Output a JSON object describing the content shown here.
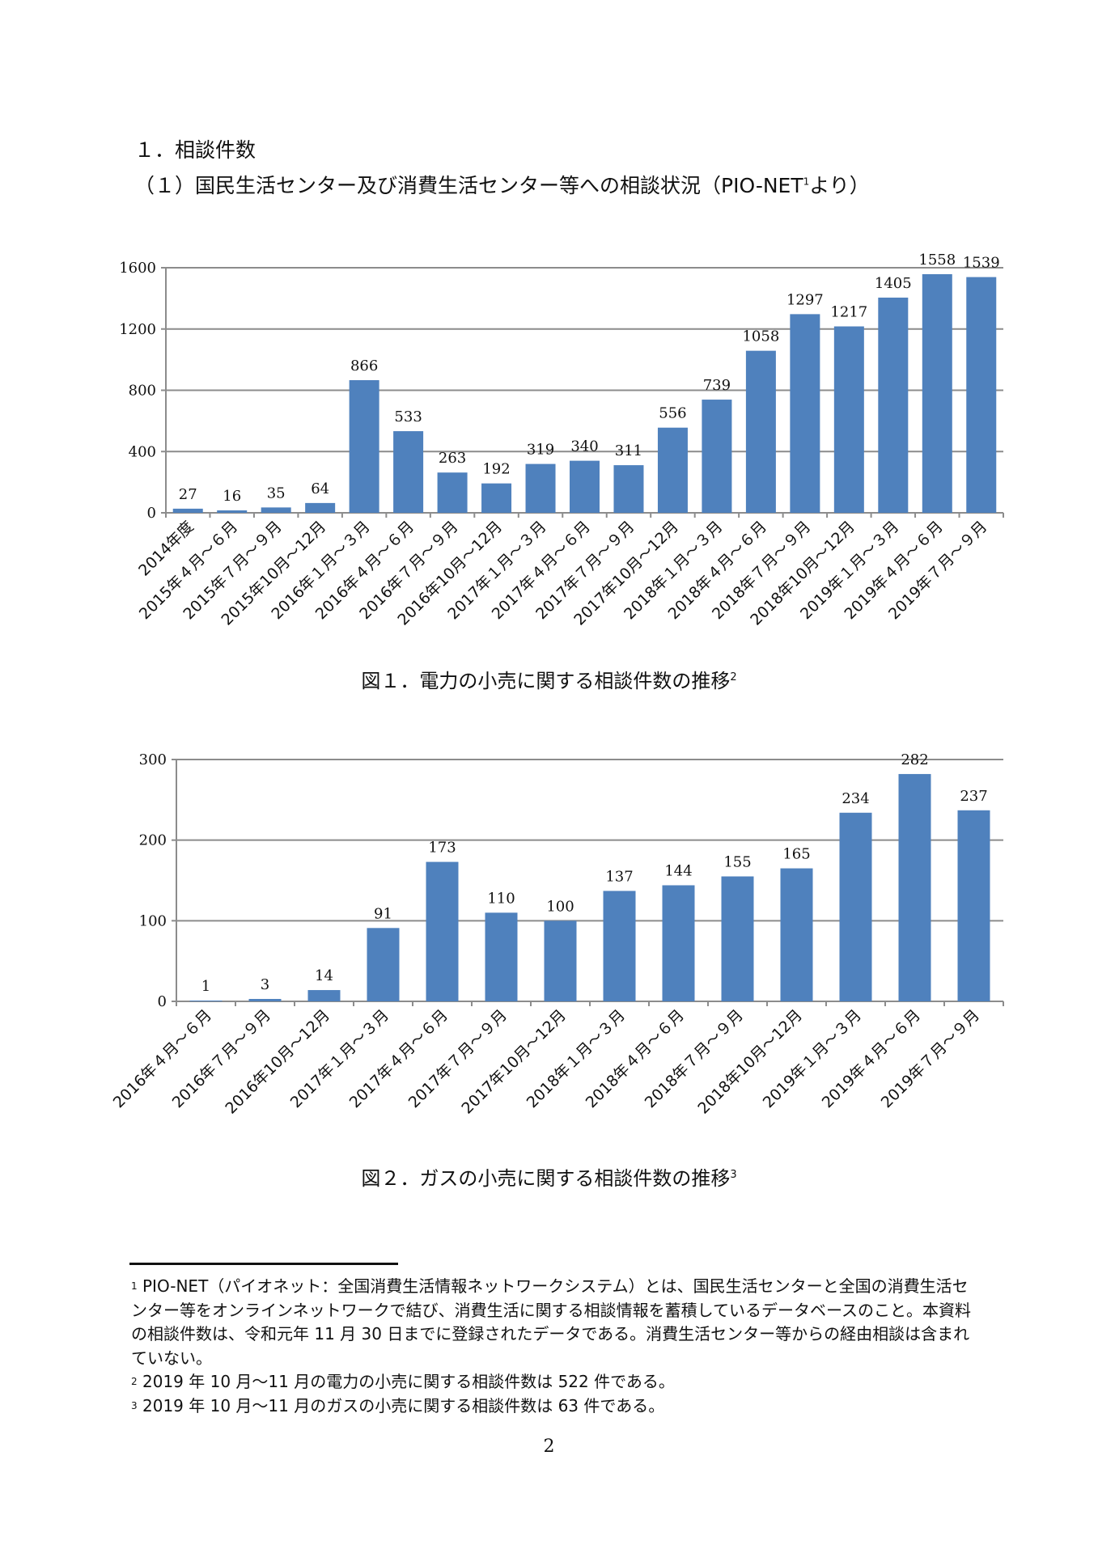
{
  "heading": "１．相談件数",
  "subheading": "（１）国民生活センター及び消費生活センター等への相談状況（PIO-NET",
  "subheading_sup": "1",
  "subheading_tail": "より）",
  "chart_data": [
    {
      "type": "bar",
      "title": "図１．電力の小売に関する相談件数の推移",
      "title_sup": "2",
      "categories": [
        "2014年度",
        "2015年４月～６月",
        "2015年７月～９月",
        "2015年10月～12月",
        "2016年１月～３月",
        "2016年４月～６月",
        "2016年７月～９月",
        "2016年10月～12月",
        "2017年１月～３月",
        "2017年４月～６月",
        "2017年７月～９月",
        "2017年10月～12月",
        "2018年１月～３月",
        "2018年４月～６月",
        "2018年７月～９月",
        "2018年10月～12月",
        "2019年１月～３月",
        "2019年４月～６月",
        "2019年７月～９月"
      ],
      "values": [
        27,
        16,
        35,
        64,
        866,
        533,
        263,
        192,
        319,
        340,
        311,
        556,
        739,
        1058,
        1297,
        1217,
        1405,
        1558,
        1539
      ],
      "yticks": [
        "0",
        "400",
        "800",
        "1200",
        "1600"
      ],
      "ylim": [
        0,
        1600
      ],
      "grid": true,
      "bar_color": "#4f81bd"
    },
    {
      "type": "bar",
      "title": "図２．ガスの小売に関する相談件数の推移",
      "title_sup": "3",
      "categories": [
        "2016年４月～６月",
        "2016年７月～９月",
        "2016年10月～12月",
        "2017年１月～３月",
        "2017年４月～６月",
        "2017年７月～９月",
        "2017年10月～12月",
        "2018年１月～３月",
        "2018年４月～６月",
        "2018年７月～９月",
        "2018年10月～12月",
        "2019年１月～３月",
        "2019年４月～６月",
        "2019年７月～９月"
      ],
      "values": [
        1,
        3,
        14,
        91,
        173,
        110,
        100,
        137,
        144,
        155,
        165,
        234,
        282,
        237
      ],
      "yticks": [
        "0",
        "100",
        "200",
        "300"
      ],
      "ylim": [
        0,
        300
      ],
      "grid": true,
      "bar_color": "#4f81bd"
    }
  ],
  "footnotes": [
    {
      "mark": "1",
      "text": " PIO-NET（パイオネット：全国消費生活情報ネットワークシステム）とは、国民生活センターと全国の消費生活センター等をオンラインネットワークで結び、消費生活に関する相談情報を蓄積しているデータベースのこと。本資料の相談件数は、令和元年 11 月 30 日までに登録されたデータである。消費生活センター等からの経由相談は含まれていない。"
    },
    {
      "mark": "2",
      "text": " 2019 年 10 月～11 月の電力の小売に関する相談件数は 522 件である。"
    },
    {
      "mark": "3",
      "text": " 2019 年 10 月～11 月のガスの小売に関する相談件数は 63 件である。"
    }
  ],
  "page_number": "2"
}
